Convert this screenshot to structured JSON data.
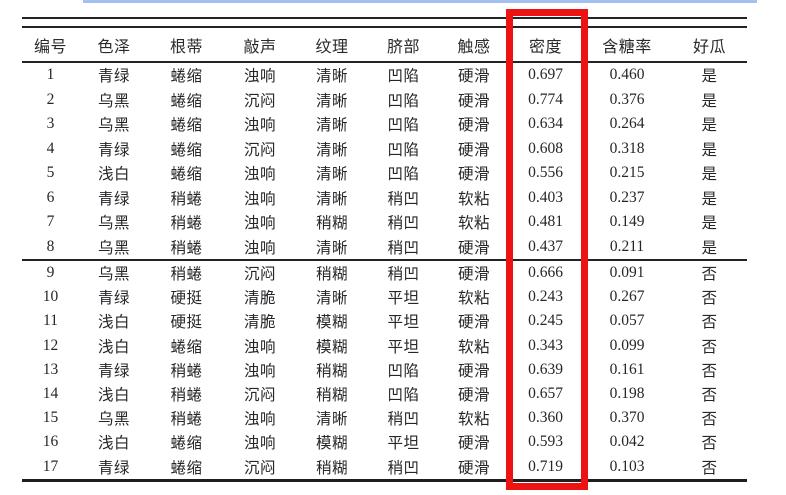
{
  "decorations": {
    "top_bar_color": "#a4c0ee",
    "highlight_box_color": "#ee1313",
    "rule_color": "#232323"
  },
  "chart_data": {
    "type": "table",
    "columns": [
      "编号",
      "色泽",
      "根蒂",
      "敲声",
      "纹理",
      "脐部",
      "触感",
      "密度",
      "含糖率",
      "好瓜"
    ],
    "highlighted_column": "密度",
    "highlighted_column_index": 7,
    "groups": [
      [
        [
          "1",
          "青绿",
          "蜷缩",
          "浊响",
          "清晰",
          "凹陷",
          "硬滑",
          "0.697",
          "0.460",
          "是"
        ],
        [
          "2",
          "乌黑",
          "蜷缩",
          "沉闷",
          "清晰",
          "凹陷",
          "硬滑",
          "0.774",
          "0.376",
          "是"
        ],
        [
          "3",
          "乌黑",
          "蜷缩",
          "浊响",
          "清晰",
          "凹陷",
          "硬滑",
          "0.634",
          "0.264",
          "是"
        ],
        [
          "4",
          "青绿",
          "蜷缩",
          "沉闷",
          "清晰",
          "凹陷",
          "硬滑",
          "0.608",
          "0.318",
          "是"
        ],
        [
          "5",
          "浅白",
          "蜷缩",
          "浊响",
          "清晰",
          "凹陷",
          "硬滑",
          "0.556",
          "0.215",
          "是"
        ],
        [
          "6",
          "青绿",
          "稍蜷",
          "浊响",
          "清晰",
          "稍凹",
          "软粘",
          "0.403",
          "0.237",
          "是"
        ],
        [
          "7",
          "乌黑",
          "稍蜷",
          "浊响",
          "稍糊",
          "稍凹",
          "软粘",
          "0.481",
          "0.149",
          "是"
        ],
        [
          "8",
          "乌黑",
          "稍蜷",
          "浊响",
          "清晰",
          "稍凹",
          "硬滑",
          "0.437",
          "0.211",
          "是"
        ]
      ],
      [
        [
          "9",
          "乌黑",
          "稍蜷",
          "沉闷",
          "稍糊",
          "稍凹",
          "硬滑",
          "0.666",
          "0.091",
          "否"
        ],
        [
          "10",
          "青绿",
          "硬挺",
          "清脆",
          "清晰",
          "平坦",
          "软粘",
          "0.243",
          "0.267",
          "否"
        ],
        [
          "11",
          "浅白",
          "硬挺",
          "清脆",
          "模糊",
          "平坦",
          "硬滑",
          "0.245",
          "0.057",
          "否"
        ],
        [
          "12",
          "浅白",
          "蜷缩",
          "浊响",
          "模糊",
          "平坦",
          "软粘",
          "0.343",
          "0.099",
          "否"
        ],
        [
          "13",
          "青绿",
          "稍蜷",
          "浊响",
          "稍糊",
          "凹陷",
          "硬滑",
          "0.639",
          "0.161",
          "否"
        ],
        [
          "14",
          "浅白",
          "稍蜷",
          "沉闷",
          "稍糊",
          "凹陷",
          "硬滑",
          "0.657",
          "0.198",
          "否"
        ],
        [
          "15",
          "乌黑",
          "稍蜷",
          "浊响",
          "清晰",
          "稍凹",
          "软粘",
          "0.360",
          "0.370",
          "否"
        ],
        [
          "16",
          "浅白",
          "蜷缩",
          "浊响",
          "模糊",
          "平坦",
          "硬滑",
          "0.593",
          "0.042",
          "否"
        ],
        [
          "17",
          "青绿",
          "蜷缩",
          "沉闷",
          "稍糊",
          "稍凹",
          "硬滑",
          "0.719",
          "0.103",
          "否"
        ]
      ]
    ]
  }
}
